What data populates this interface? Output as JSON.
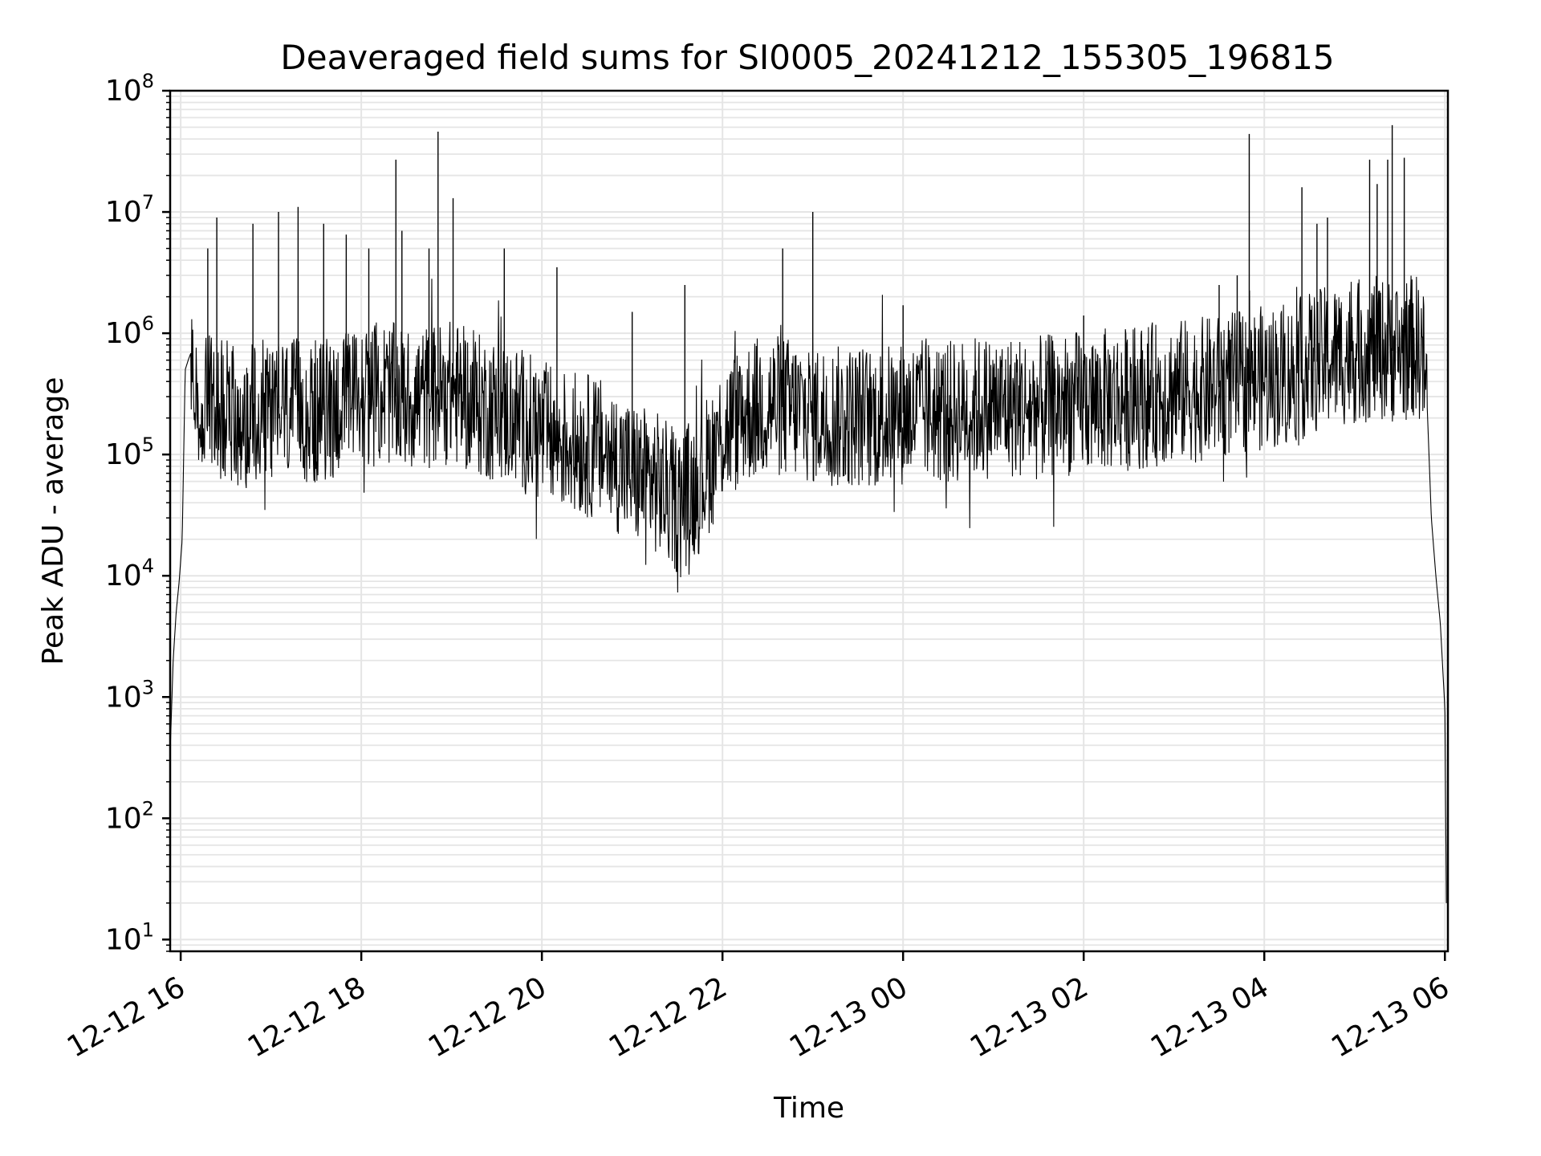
{
  "chart_data": {
    "type": "line",
    "title": "Deaveraged field sums for SI0005_20241212_155305_196815",
    "xlabel": "Time",
    "ylabel": "Peak ADU - average",
    "yscale": "log",
    "ylim": [
      8,
      100000000
    ],
    "xlim": [
      "2024-12-12T15:53",
      "2024-12-13T06:02"
    ],
    "grid": true,
    "line_color": "#000000",
    "grid_color": "#e5e5e5",
    "x_ticks": [
      "2024-12-12T16:00",
      "2024-12-12T18:00",
      "2024-12-12T20:00",
      "2024-12-12T22:00",
      "2024-12-13T00:00",
      "2024-12-13T02:00",
      "2024-12-13T04:00",
      "2024-12-13T06:00"
    ],
    "x_tick_labels": [
      "12-12 16",
      "12-12 18",
      "12-12 20",
      "12-12 22",
      "12-13 00",
      "12-13 02",
      "12-13 04",
      "12-13 06"
    ],
    "y_ticks": [
      10,
      100,
      1000,
      10000,
      100000,
      1000000,
      10000000,
      100000000
    ],
    "y_tick_labels": [
      {
        "base": "10",
        "exp": "1"
      },
      {
        "base": "10",
        "exp": "2"
      },
      {
        "base": "10",
        "exp": "3"
      },
      {
        "base": "10",
        "exp": "4"
      },
      {
        "base": "10",
        "exp": "5"
      },
      {
        "base": "10",
        "exp": "6"
      },
      {
        "base": "10",
        "exp": "7"
      },
      {
        "base": "10",
        "exp": "8"
      }
    ],
    "series": [
      {
        "x": [
          "2024-12-12T15:53",
          "2024-12-12T15:55",
          "2024-12-12T15:57",
          "2024-12-12T15:59",
          "2024-12-12T16:01",
          "2024-12-12T16:03",
          "2024-12-12T16:05",
          "2024-12-12T16:07",
          "2024-12-12T16:10",
          "2024-12-12T16:20",
          "2024-12-12T16:30",
          "2024-12-12T16:45",
          "2024-12-12T17:00",
          "2024-12-12T17:15",
          "2024-12-12T17:30",
          "2024-12-12T17:45",
          "2024-12-12T18:00",
          "2024-12-12T18:15",
          "2024-12-12T18:30",
          "2024-12-12T18:45",
          "2024-12-12T19:00",
          "2024-12-12T19:15",
          "2024-12-12T19:30",
          "2024-12-12T19:45",
          "2024-12-12T20:00",
          "2024-12-12T20:15",
          "2024-12-12T20:30",
          "2024-12-12T20:45",
          "2024-12-12T21:00",
          "2024-12-12T21:15",
          "2024-12-12T21:30",
          "2024-12-12T21:45",
          "2024-12-12T22:00",
          "2024-12-12T22:15",
          "2024-12-12T22:30",
          "2024-12-12T22:45",
          "2024-12-12T23:00",
          "2024-12-12T23:15",
          "2024-12-12T23:30",
          "2024-12-12T23:45",
          "2024-12-13T00:00",
          "2024-12-13T00:15",
          "2024-12-13T00:30",
          "2024-12-13T00:45",
          "2024-12-13T01:00",
          "2024-12-13T01:15",
          "2024-12-13T01:30",
          "2024-12-13T01:45",
          "2024-12-13T02:00",
          "2024-12-13T02:15",
          "2024-12-13T02:30",
          "2024-12-13T02:45",
          "2024-12-13T03:00",
          "2024-12-13T03:15",
          "2024-12-13T03:30",
          "2024-12-13T03:45",
          "2024-12-13T04:00",
          "2024-12-13T04:15",
          "2024-12-13T04:30",
          "2024-12-13T04:45",
          "2024-12-13T05:00",
          "2024-12-13T05:15",
          "2024-12-13T05:30",
          "2024-12-13T05:40",
          "2024-12-13T05:45",
          "2024-12-13T05:48",
          "2024-12-13T05:51",
          "2024-12-13T05:54",
          "2024-12-13T05:57",
          "2024-12-13T06:00",
          "2024-12-13T06:01"
        ],
        "y": [
          350,
          2000,
          5000,
          9000,
          20000,
          500000,
          600000,
          700000,
          300000,
          250000,
          220000,
          200000,
          250000,
          230000,
          220000,
          260000,
          300000,
          330000,
          280000,
          300000,
          330000,
          260000,
          230000,
          200000,
          150000,
          130000,
          120000,
          100000,
          70000,
          60000,
          40000,
          60000,
          150000,
          220000,
          260000,
          240000,
          220000,
          200000,
          210000,
          200000,
          220000,
          230000,
          220000,
          240000,
          250000,
          250000,
          240000,
          260000,
          270000,
          280000,
          290000,
          310000,
          330000,
          340000,
          360000,
          400000,
          430000,
          450000,
          550000,
          650000,
          700000,
          750000,
          700000,
          800000,
          700000,
          300000,
          30000,
          10000,
          4000,
          800,
          20
        ],
        "spikes": [
          {
            "x": "2024-12-12T16:18",
            "y": 5000000
          },
          {
            "x": "2024-12-12T16:24",
            "y": 9000000
          },
          {
            "x": "2024-12-12T16:48",
            "y": 8000000
          },
          {
            "x": "2024-12-12T17:05",
            "y": 10000000
          },
          {
            "x": "2024-12-12T17:18",
            "y": 11000000
          },
          {
            "x": "2024-12-12T17:35",
            "y": 8000000
          },
          {
            "x": "2024-12-12T17:50",
            "y": 6500000
          },
          {
            "x": "2024-12-12T18:05",
            "y": 5000000
          },
          {
            "x": "2024-12-12T18:23",
            "y": 27000000
          },
          {
            "x": "2024-12-12T18:27",
            "y": 7000000
          },
          {
            "x": "2024-12-12T18:45",
            "y": 5000000
          },
          {
            "x": "2024-12-12T18:51",
            "y": 46000000
          },
          {
            "x": "2024-12-12T19:01",
            "y": 13000000
          },
          {
            "x": "2024-12-12T19:35",
            "y": 5000000
          },
          {
            "x": "2024-12-12T20:10",
            "y": 3500000
          },
          {
            "x": "2024-12-12T21:00",
            "y": 1500000
          },
          {
            "x": "2024-12-12T21:35",
            "y": 2500000
          },
          {
            "x": "2024-12-12T22:40",
            "y": 5000000
          },
          {
            "x": "2024-12-12T23:00",
            "y": 10000000
          },
          {
            "x": "2024-12-13T00:00",
            "y": 1700000
          },
          {
            "x": "2024-12-13T02:00",
            "y": 1400000
          },
          {
            "x": "2024-12-13T03:30",
            "y": 2500000
          },
          {
            "x": "2024-12-13T03:42",
            "y": 3000000
          },
          {
            "x": "2024-12-13T03:50",
            "y": 44000000
          },
          {
            "x": "2024-12-13T04:25",
            "y": 16000000
          },
          {
            "x": "2024-12-13T04:35",
            "y": 8000000
          },
          {
            "x": "2024-12-13T04:42",
            "y": 9000000
          },
          {
            "x": "2024-12-13T05:10",
            "y": 27000000
          },
          {
            "x": "2024-12-13T05:15",
            "y": 17000000
          },
          {
            "x": "2024-12-13T05:22",
            "y": 27000000
          },
          {
            "x": "2024-12-13T05:25",
            "y": 52000000
          },
          {
            "x": "2024-12-13T05:33",
            "y": 28000000
          }
        ]
      }
    ]
  }
}
